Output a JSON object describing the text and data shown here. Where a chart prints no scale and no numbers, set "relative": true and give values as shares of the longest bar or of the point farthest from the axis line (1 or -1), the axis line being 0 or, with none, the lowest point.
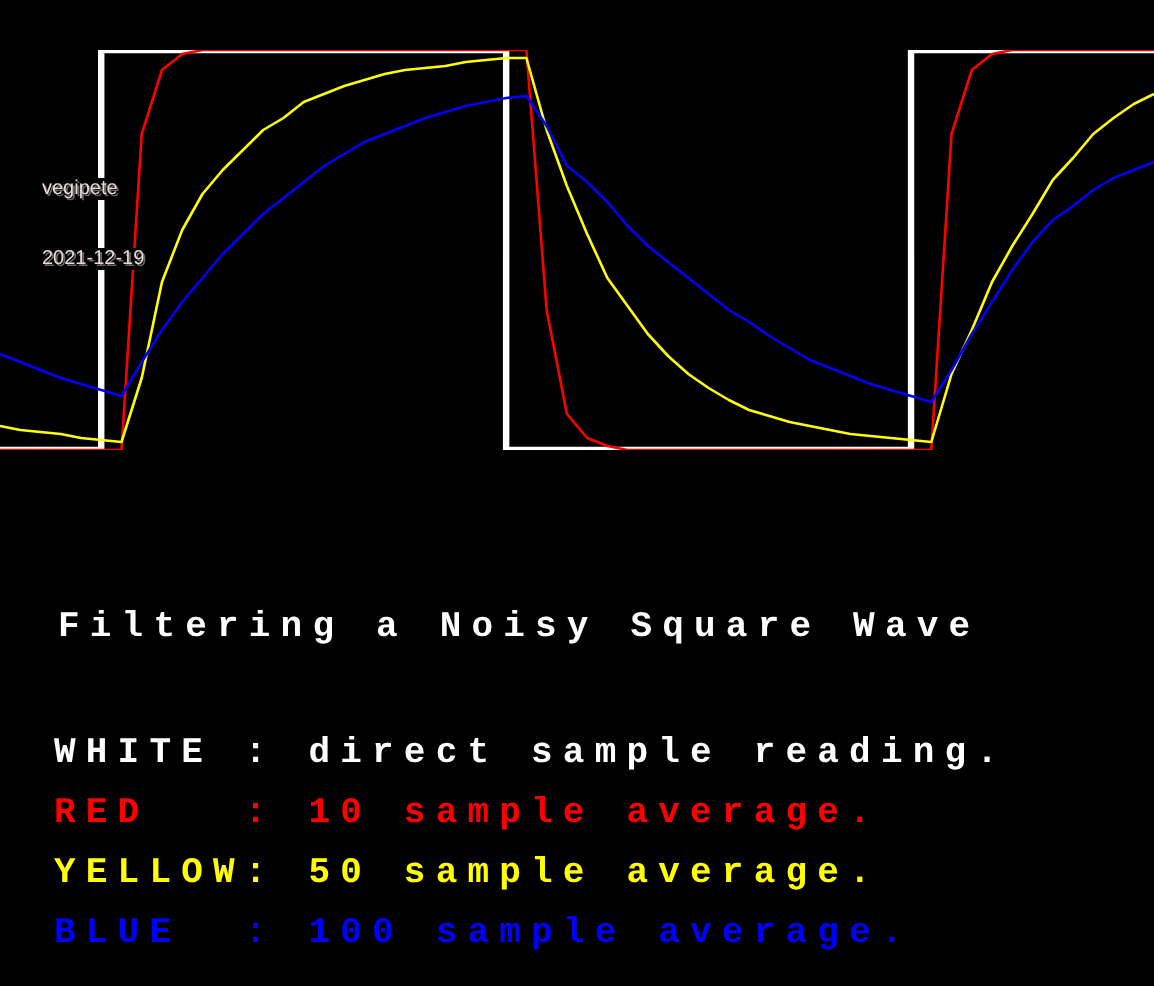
{
  "chart_data": {
    "type": "line",
    "relative": true,
    "title": "Filtering a Noisy Square Wave",
    "marker": "none",
    "legend": "bottom",
    "grid": false,
    "annotations": [
      "vegipete",
      "2021-12-19"
    ],
    "categories": [
      null,
      null,
      null,
      null,
      null,
      null,
      null,
      null,
      null,
      null,
      null,
      null,
      null,
      null,
      null,
      null,
      null,
      null,
      null,
      null,
      null,
      null,
      null,
      null,
      null,
      null,
      null,
      null,
      null,
      null,
      null,
      null,
      null,
      null,
      null,
      null,
      null,
      null,
      null,
      null,
      null,
      null,
      null,
      null,
      null,
      null,
      null,
      null,
      null,
      null,
      null,
      null,
      null,
      null,
      null,
      null,
      null,
      null
    ],
    "series": [
      {
        "name": "WHITE : direct sample reading.",
        "type": "step",
        "color": "#ffffff",
        "values": [
          0,
          0,
          0,
          0,
          0,
          0,
          1,
          1,
          1,
          1,
          1,
          1,
          1,
          1,
          1,
          1,
          1,
          1,
          1,
          1,
          1,
          1,
          1,
          1,
          1,
          1,
          0,
          0,
          0,
          0,
          0,
          0,
          0,
          0,
          0,
          0,
          0,
          0,
          0,
          0,
          0,
          0,
          0,
          0,
          0,
          0,
          1,
          1,
          1,
          1,
          1,
          1,
          1,
          1,
          1,
          1,
          1,
          1
        ]
      },
      {
        "name": "RED   : 10 sample average.",
        "color": "#ff0000",
        "values": [
          0,
          0,
          0,
          0,
          0,
          0,
          0,
          0.79,
          0.95,
          0.99,
          1,
          1,
          1,
          1,
          1,
          1,
          1,
          1,
          1,
          1,
          1,
          1,
          1,
          1,
          1,
          1,
          1,
          0.35,
          0.09,
          0.03,
          0.01,
          0,
          0,
          0,
          0,
          0,
          0,
          0,
          0,
          0,
          0,
          0,
          0,
          0,
          0,
          0,
          0,
          0.79,
          0.95,
          0.99,
          1,
          1,
          1,
          1,
          1,
          1,
          1,
          1
        ]
      },
      {
        "name": "YELLOW: 50 sample average.",
        "color": "#ffff00",
        "values": [
          0.06,
          0.05,
          0.045,
          0.04,
          0.03,
          0.025,
          0.02,
          0.18,
          0.42,
          0.55,
          0.64,
          0.7,
          0.75,
          0.8,
          0.83,
          0.87,
          0.89,
          0.91,
          0.925,
          0.94,
          0.95,
          0.955,
          0.96,
          0.97,
          0.975,
          0.98,
          0.98,
          0.8,
          0.66,
          0.54,
          0.43,
          0.36,
          0.29,
          0.235,
          0.19,
          0.155,
          0.125,
          0.1,
          0.085,
          0.07,
          0.06,
          0.05,
          0.04,
          0.035,
          0.03,
          0.025,
          0.02,
          0.19,
          0.3,
          0.42,
          0.51,
          0.59,
          0.675,
          0.73,
          0.79,
          0.83,
          0.865,
          0.89
        ]
      },
      {
        "name": "BLUE  : 100 sample average.",
        "color": "#0000ff",
        "values": [
          0.24,
          0.22,
          0.2,
          0.18,
          0.165,
          0.15,
          0.135,
          0.22,
          0.3,
          0.37,
          0.43,
          0.49,
          0.54,
          0.59,
          0.63,
          0.67,
          0.71,
          0.74,
          0.77,
          0.79,
          0.81,
          0.83,
          0.845,
          0.86,
          0.87,
          0.88,
          0.885,
          0.81,
          0.71,
          0.67,
          0.62,
          0.56,
          0.51,
          0.47,
          0.43,
          0.39,
          0.35,
          0.32,
          0.285,
          0.255,
          0.225,
          0.205,
          0.185,
          0.165,
          0.15,
          0.135,
          0.12,
          0.2,
          0.29,
          0.37,
          0.45,
          0.52,
          0.575,
          0.61,
          0.65,
          0.68,
          0.7,
          0.72
        ]
      }
    ]
  }
}
